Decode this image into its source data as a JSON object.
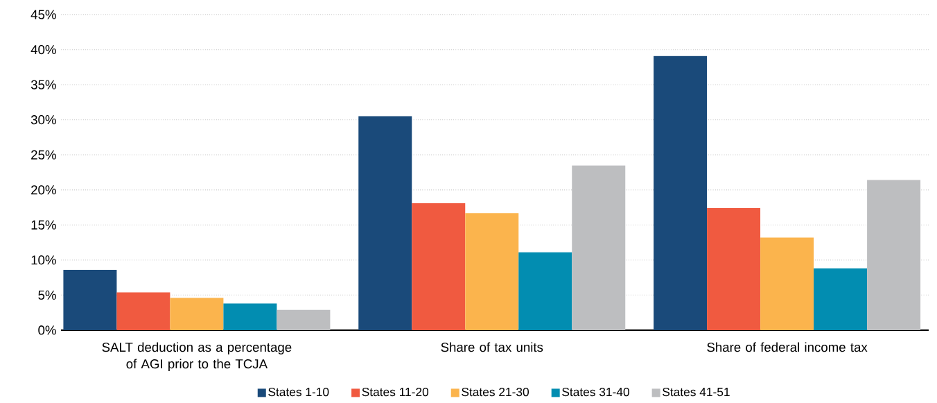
{
  "chart_data": {
    "type": "bar",
    "categories": [
      "SALT deduction as a percentage of AGI prior to the TCJA",
      "Share of tax units",
      "Share of federal income tax"
    ],
    "series": [
      {
        "name": "States 1-10",
        "color": "#1a4a7a",
        "values": [
          8.6,
          30.5,
          39.1
        ]
      },
      {
        "name": "States 11-20",
        "color": "#f05a40",
        "values": [
          5.4,
          18.1,
          17.4
        ]
      },
      {
        "name": "States 21-30",
        "color": "#fbb44d",
        "values": [
          4.6,
          16.7,
          13.2
        ]
      },
      {
        "name": "States 31-40",
        "color": "#028db1",
        "values": [
          3.8,
          11.1,
          8.8
        ]
      },
      {
        "name": "States 41-51",
        "color": "#bdbec0",
        "values": [
          2.9,
          23.5,
          21.4
        ]
      }
    ],
    "ylim": [
      0,
      45
    ],
    "yticks": [
      {
        "value": 0,
        "label": "0%"
      },
      {
        "value": 5,
        "label": "5%"
      },
      {
        "value": 10,
        "label": "10%"
      },
      {
        "value": 15,
        "label": "15%"
      },
      {
        "value": 20,
        "label": "20%"
      },
      {
        "value": 25,
        "label": "25%"
      },
      {
        "value": 30,
        "label": "30%"
      },
      {
        "value": 35,
        "label": "35%"
      },
      {
        "value": 40,
        "label": "40%"
      },
      {
        "value": 45,
        "label": "45%"
      }
    ],
    "grid": "y",
    "legend": "bottom"
  }
}
